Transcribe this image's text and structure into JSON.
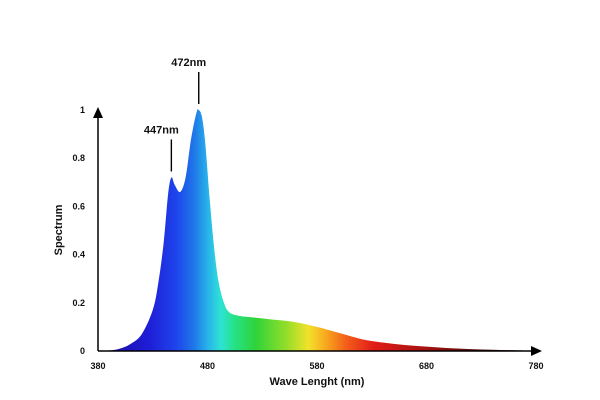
{
  "chart_data": {
    "type": "area",
    "title": "",
    "xlabel": "Wave Lenght (nm)",
    "ylabel": "Spectrum",
    "xlim": [
      380,
      780
    ],
    "ylim": [
      0,
      1
    ],
    "x_ticks": [
      "380",
      "480",
      "580",
      "680",
      "780"
    ],
    "y_ticks": [
      "0",
      "0.2",
      "0.4",
      "0.6",
      "0.8",
      "1"
    ],
    "grid": false,
    "legend": "none",
    "fill": "visible-spectrum gradient",
    "series": [
      {
        "x": [
          380,
          390,
          400,
          410,
          420,
          430,
          435,
          440,
          444,
          447,
          450,
          455,
          460,
          465,
          470,
          472,
          475,
          478,
          482,
          486,
          490,
          495,
          500,
          510,
          520,
          540,
          560,
          580,
          600,
          620,
          640,
          660,
          680,
          700,
          720,
          740,
          760,
          780
        ],
        "y": [
          0,
          0.002,
          0.01,
          0.03,
          0.07,
          0.17,
          0.28,
          0.45,
          0.65,
          0.72,
          0.69,
          0.66,
          0.72,
          0.88,
          0.99,
          1.0,
          0.97,
          0.86,
          0.63,
          0.43,
          0.29,
          0.2,
          0.16,
          0.145,
          0.14,
          0.13,
          0.12,
          0.1,
          0.075,
          0.05,
          0.035,
          0.025,
          0.018,
          0.012,
          0.008,
          0.005,
          0.003,
          0.001
        ]
      }
    ],
    "annotations": [
      {
        "label": "447nm",
        "x": 447,
        "y": 0.72
      },
      {
        "label": "472nm",
        "x": 472,
        "y": 1.0
      }
    ]
  }
}
